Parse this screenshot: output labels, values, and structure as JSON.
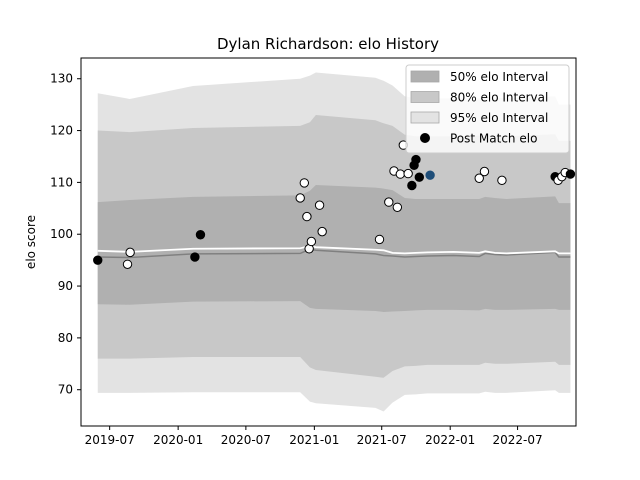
{
  "chart_data": {
    "type": "scatter",
    "title": "Dylan Richardson: elo History",
    "xlabel": "",
    "ylabel": "elo score",
    "xlim": [
      "2019-04-15",
      "2022-12-05"
    ],
    "ylim": [
      63,
      134
    ],
    "x_ticks": [
      "2019-07",
      "2020-01",
      "2020-07",
      "2021-01",
      "2021-07",
      "2022-01",
      "2022-07"
    ],
    "y_ticks": [
      70,
      80,
      90,
      100,
      110,
      120,
      130
    ],
    "grid": false,
    "legend": {
      "placement": "top-right",
      "entries": [
        "50% elo Interval",
        "80% elo Interval",
        "95% elo Interval",
        "Post Match elo"
      ]
    },
    "colors": {
      "band_50": "#b0b0b0",
      "band_80": "#c8c8c8",
      "band_95": "#e3e3e3",
      "mean_line": "#ffffff",
      "median_line": "#808080",
      "point_fill_white": "#ffffff",
      "point_fill_black": "#000000",
      "point_current": "#1f4e79"
    },
    "intervals": {
      "x": [
        "2019-05-30",
        "2019-08-24",
        "2020-02-10",
        "2020-11-24",
        "2020-12-20",
        "2021-01-05",
        "2021-06-14",
        "2021-07-06",
        "2021-07-30",
        "2021-09-01",
        "2021-09-30",
        "2021-11-01",
        "2022-01-10",
        "2022-03-20",
        "2022-04-05",
        "2022-05-01",
        "2022-06-01",
        "2022-10-10",
        "2022-10-20",
        "2022-11-20"
      ],
      "mean": [
        96.8,
        96.6,
        97.2,
        97.3,
        97.7,
        97.5,
        97.0,
        96.9,
        96.4,
        96.3,
        96.4,
        96.5,
        96.6,
        96.4,
        96.7,
        96.4,
        96.3,
        96.7,
        96.3,
        96.3
      ],
      "median": [
        95.6,
        95.5,
        96.2,
        96.3,
        97.1,
        96.9,
        96.2,
        95.9,
        95.8,
        95.6,
        95.7,
        95.8,
        95.9,
        95.7,
        96.3,
        96.1,
        96.0,
        96.5,
        95.6,
        95.6
      ],
      "p50_low": [
        86.5,
        86.4,
        87.0,
        87.1,
        85.8,
        85.6,
        85.2,
        85.0,
        85.1,
        85.2,
        85.3,
        85.4,
        85.4,
        85.3,
        85.6,
        85.4,
        85.4,
        85.6,
        85.4,
        85.4
      ],
      "p50_high": [
        106.2,
        106.6,
        107.2,
        107.5,
        108.4,
        109.5,
        109.0,
        108.8,
        108.5,
        107.0,
        106.8,
        106.8,
        106.8,
        106.8,
        107.2,
        107.0,
        106.8,
        107.3,
        106.0,
        106.0
      ],
      "p80_low": [
        76.0,
        76.0,
        76.3,
        76.3,
        74.3,
        73.8,
        72.5,
        72.3,
        73.6,
        74.5,
        74.6,
        74.8,
        74.8,
        74.8,
        75.2,
        75.0,
        75.0,
        75.4,
        74.8,
        74.8
      ],
      "p80_high": [
        120.0,
        119.7,
        120.5,
        120.9,
        121.6,
        123.0,
        122.0,
        121.4,
        120.9,
        119.2,
        118.9,
        118.9,
        118.9,
        119.0,
        119.2,
        119.0,
        118.9,
        119.3,
        118.0,
        118.0
      ],
      "p95_low": [
        69.4,
        69.4,
        69.5,
        69.5,
        67.7,
        67.4,
        66.5,
        65.8,
        67.5,
        69.0,
        69.1,
        69.3,
        69.3,
        69.3,
        69.6,
        69.4,
        69.4,
        69.9,
        69.4,
        69.4
      ],
      "p95_high": [
        127.2,
        126.1,
        128.6,
        130.0,
        130.6,
        131.2,
        130.2,
        129.6,
        128.7,
        126.6,
        126.2,
        126.2,
        126.2,
        126.2,
        126.5,
        126.3,
        126.2,
        126.6,
        125.0,
        125.0
      ]
    },
    "points": [
      {
        "x": "2019-05-30",
        "y": 95.0,
        "fill": "black"
      },
      {
        "x": "2019-08-18",
        "y": 94.2,
        "fill": "white"
      },
      {
        "x": "2019-08-25",
        "y": 96.5,
        "fill": "white"
      },
      {
        "x": "2020-02-15",
        "y": 95.6,
        "fill": "black"
      },
      {
        "x": "2020-03-01",
        "y": 99.9,
        "fill": "black"
      },
      {
        "x": "2020-11-24",
        "y": 107.0,
        "fill": "white"
      },
      {
        "x": "2020-12-05",
        "y": 109.9,
        "fill": "white"
      },
      {
        "x": "2020-12-12",
        "y": 103.4,
        "fill": "white"
      },
      {
        "x": "2020-12-18",
        "y": 97.2,
        "fill": "white"
      },
      {
        "x": "2020-12-24",
        "y": 98.6,
        "fill": "white"
      },
      {
        "x": "2021-01-15",
        "y": 105.6,
        "fill": "white"
      },
      {
        "x": "2021-01-22",
        "y": 100.5,
        "fill": "white"
      },
      {
        "x": "2021-06-25",
        "y": 99.0,
        "fill": "white"
      },
      {
        "x": "2021-07-20",
        "y": 106.2,
        "fill": "white"
      },
      {
        "x": "2021-08-03",
        "y": 112.2,
        "fill": "white"
      },
      {
        "x": "2021-08-12",
        "y": 105.2,
        "fill": "white"
      },
      {
        "x": "2021-08-20",
        "y": 111.6,
        "fill": "white"
      },
      {
        "x": "2021-08-28",
        "y": 117.2,
        "fill": "white"
      },
      {
        "x": "2021-09-10",
        "y": 111.7,
        "fill": "white"
      },
      {
        "x": "2021-09-20",
        "y": 109.4,
        "fill": "black"
      },
      {
        "x": "2021-09-26",
        "y": 113.3,
        "fill": "black"
      },
      {
        "x": "2021-10-01",
        "y": 114.4,
        "fill": "black"
      },
      {
        "x": "2021-10-10",
        "y": 111.0,
        "fill": "black"
      },
      {
        "x": "2021-11-08",
        "y": 111.4,
        "fill": "current"
      },
      {
        "x": "2022-03-20",
        "y": 110.8,
        "fill": "white"
      },
      {
        "x": "2022-04-03",
        "y": 112.1,
        "fill": "white"
      },
      {
        "x": "2022-05-20",
        "y": 110.4,
        "fill": "white"
      },
      {
        "x": "2022-10-10",
        "y": 111.1,
        "fill": "black"
      },
      {
        "x": "2022-10-18",
        "y": 110.4,
        "fill": "white"
      },
      {
        "x": "2022-10-28",
        "y": 111.1,
        "fill": "white"
      },
      {
        "x": "2022-11-06",
        "y": 111.9,
        "fill": "white"
      },
      {
        "x": "2022-11-20",
        "y": 111.6,
        "fill": "black"
      }
    ]
  }
}
